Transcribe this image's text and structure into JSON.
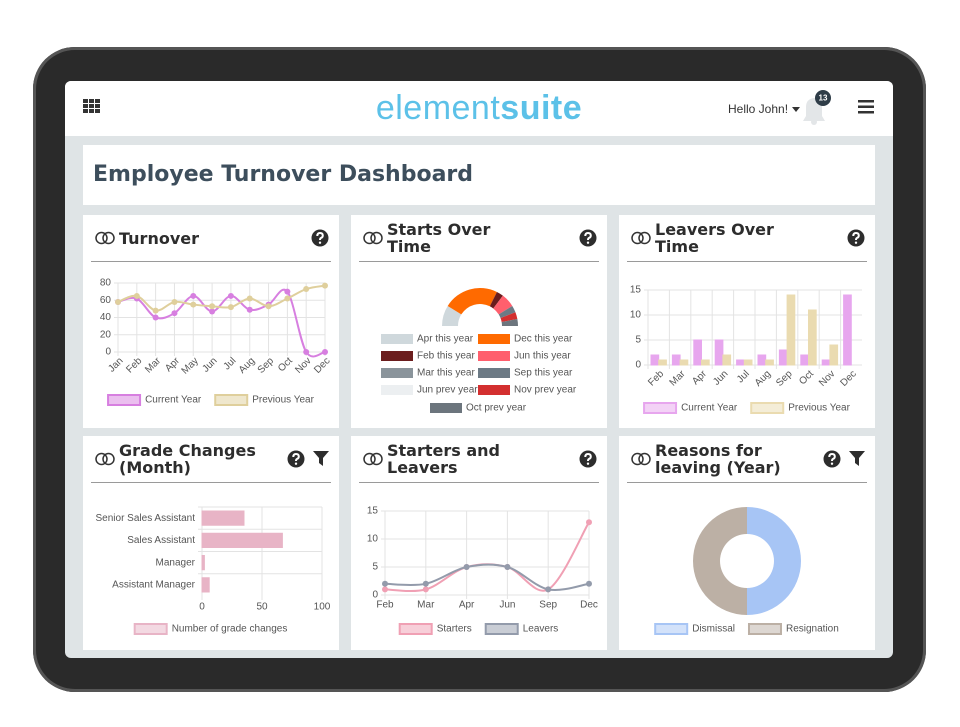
{
  "header": {
    "logo_light": "element",
    "logo_bold": "suite",
    "greeting": "Hello John!",
    "notification_count": 13
  },
  "dashboard_title": "Employee Turnover Dashboard",
  "chart_data": [
    {
      "type": "line",
      "title": "Turnover",
      "categories": [
        "Jan",
        "Feb",
        "Mar",
        "Apr",
        "May",
        "Jun",
        "Jul",
        "Aug",
        "Sep",
        "Oct",
        "Nov",
        "Dec"
      ],
      "ylim": [
        0,
        80
      ],
      "yticks": [
        0,
        20,
        40,
        60,
        80
      ],
      "grid": true,
      "series": [
        {
          "name": "Current Year",
          "color": "#d77fe0",
          "values": [
            58,
            62,
            40,
            45,
            65,
            47,
            65,
            49,
            55,
            70,
            0,
            0
          ]
        },
        {
          "name": "Previous Year",
          "color": "#dfcf9c",
          "values": [
            58,
            65,
            48,
            58,
            55,
            53,
            52,
            62,
            53,
            62,
            73,
            77
          ]
        }
      ]
    },
    {
      "type": "gauge",
      "title": "Starts Over Time",
      "categories": [
        "Apr this year",
        "Dec this year",
        "Feb this year",
        "Jun this year",
        "Mar this year",
        "Sep this year",
        "Jun prev year",
        "Nov prev year",
        "Oct prev year"
      ],
      "values": [
        3,
        8,
        1,
        2,
        0,
        1,
        0,
        1,
        1
      ],
      "colors": [
        "#cfd8dc",
        "#ff6a00",
        "#6b1d1d",
        "#ff5f6d",
        "#8a949b",
        "#6c7a85",
        "#eceff1",
        "#d32f2f",
        "#6c757d"
      ]
    },
    {
      "type": "bar",
      "title": "Leavers Over Time",
      "categories": [
        "Feb",
        "Mar",
        "Apr",
        "Jun",
        "Jul",
        "Aug",
        "Sep",
        "Oct",
        "Nov",
        "Dec"
      ],
      "ylim": [
        0,
        15
      ],
      "yticks": [
        0,
        5,
        10,
        15
      ],
      "grid": true,
      "series": [
        {
          "name": "Current Year",
          "color": "#e7a6ee",
          "values": [
            2,
            2,
            5,
            5,
            1,
            2,
            3,
            2,
            1,
            14
          ]
        },
        {
          "name": "Previous Year",
          "color": "#eadbb0",
          "values": [
            1,
            1,
            1,
            2,
            1,
            1,
            14,
            11,
            4,
            0
          ]
        }
      ]
    },
    {
      "type": "hbar",
      "title": "Grade Changes (Month)",
      "categories": [
        "Senior Sales Assistant",
        "Sales Assistant",
        "Manager",
        "Assistant Manager"
      ],
      "xlim": [
        0,
        100
      ],
      "xticks": [
        0,
        50,
        100
      ],
      "grid": true,
      "series": [
        {
          "name": "Number of grade changes",
          "color": "#e8b4c6",
          "values": [
            35,
            67,
            2,
            6
          ]
        }
      ]
    },
    {
      "type": "line",
      "title": "Starters and Leavers",
      "categories": [
        "Feb",
        "Mar",
        "Apr",
        "Jun",
        "Sep",
        "Dec"
      ],
      "ylim": [
        0,
        15
      ],
      "yticks": [
        0,
        5,
        10,
        15
      ],
      "grid": true,
      "series": [
        {
          "name": "Starters",
          "color": "#f0a0b4",
          "values": [
            1,
            1,
            5,
            5,
            1,
            13
          ]
        },
        {
          "name": "Leavers",
          "color": "#939bab",
          "values": [
            2,
            2,
            5,
            5,
            1,
            2
          ]
        }
      ]
    },
    {
      "type": "doughnut",
      "title": "Reasons for leaving (Year)",
      "categories": [
        "Dismissal",
        "Resignation"
      ],
      "values": [
        50,
        50
      ],
      "colors": [
        "#a7c5f5",
        "#bcb0a5"
      ]
    }
  ]
}
